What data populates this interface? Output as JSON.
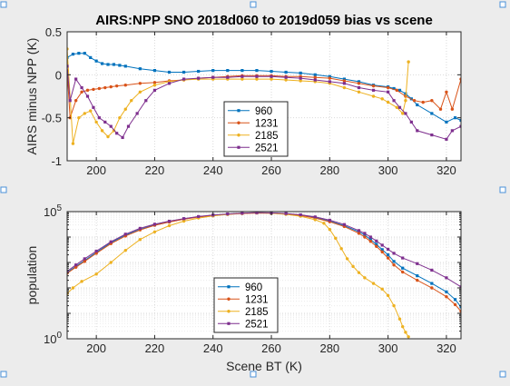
{
  "chart_data": [
    {
      "type": "line",
      "title": "AIRS:NPP SNO 2018d060 to 2019d059 bias vs scene",
      "xlabel": "",
      "ylabel": "AIRS minus NPP (K)",
      "xlim": [
        190,
        325
      ],
      "ylim": [
        -1,
        0.5
      ],
      "xticks": [
        "200",
        "220",
        "240",
        "260",
        "280",
        "300",
        "320"
      ],
      "yticks": [
        "0.5",
        "0",
        "-0.5",
        "-1"
      ],
      "grid": true,
      "legend": "center",
      "series": [
        {
          "name": "960",
          "color": "#0072bd",
          "x": [
            190,
            192,
            194,
            196,
            198,
            200,
            202,
            204,
            206,
            208,
            210,
            215,
            220,
            225,
            230,
            235,
            240,
            245,
            250,
            255,
            260,
            265,
            270,
            275,
            280,
            285,
            290,
            295,
            300,
            302,
            304,
            306,
            308,
            310,
            315,
            320,
            323,
            325
          ],
          "y": [
            0.2,
            0.24,
            0.25,
            0.25,
            0.2,
            0.16,
            0.13,
            0.12,
            0.12,
            0.11,
            0.1,
            0.07,
            0.05,
            0.03,
            0.03,
            0.04,
            0.05,
            0.05,
            0.05,
            0.05,
            0.04,
            0.03,
            0.02,
            0.0,
            -0.02,
            -0.05,
            -0.08,
            -0.12,
            -0.14,
            -0.16,
            -0.18,
            -0.22,
            -0.28,
            -0.35,
            -0.45,
            -0.55,
            -0.5,
            -0.53
          ]
        },
        {
          "name": "1231",
          "color": "#d95319",
          "x": [
            190,
            191,
            193,
            195,
            197,
            199,
            201,
            203,
            205,
            207,
            210,
            215,
            220,
            225,
            230,
            235,
            240,
            245,
            250,
            255,
            260,
            265,
            270,
            275,
            280,
            285,
            290,
            295,
            300,
            303,
            306,
            309,
            312,
            315,
            318,
            320,
            322,
            325
          ],
          "y": [
            0.05,
            -0.5,
            -0.3,
            -0.2,
            -0.18,
            -0.17,
            -0.16,
            -0.15,
            -0.14,
            -0.13,
            -0.12,
            -0.1,
            -0.09,
            -0.07,
            -0.06,
            -0.04,
            -0.03,
            -0.02,
            -0.01,
            -0.01,
            -0.01,
            -0.02,
            -0.02,
            -0.03,
            -0.04,
            -0.07,
            -0.1,
            -0.13,
            -0.15,
            -0.18,
            -0.25,
            -0.3,
            -0.32,
            -0.3,
            -0.4,
            -0.2,
            -0.4,
            -0.05
          ]
        },
        {
          "name": "2185",
          "color": "#edb120",
          "x": [
            190,
            192,
            194,
            196,
            198,
            200,
            202,
            204,
            206,
            208,
            210,
            212,
            215,
            220,
            225,
            230,
            235,
            240,
            245,
            250,
            255,
            260,
            265,
            270,
            275,
            280,
            285,
            290,
            295,
            298,
            300,
            303,
            305,
            306,
            307
          ],
          "y": [
            0.3,
            -0.8,
            -0.5,
            -0.45,
            -0.42,
            -0.55,
            -0.65,
            -0.72,
            -0.65,
            -0.5,
            -0.4,
            -0.3,
            -0.2,
            -0.12,
            -0.08,
            -0.06,
            -0.05,
            -0.05,
            -0.05,
            -0.05,
            -0.05,
            -0.05,
            -0.06,
            -0.07,
            -0.08,
            -0.1,
            -0.15,
            -0.2,
            -0.25,
            -0.28,
            -0.32,
            -0.38,
            -0.45,
            -0.3,
            0.15
          ]
        },
        {
          "name": "2521",
          "color": "#7e2f8e",
          "x": [
            190,
            191,
            193,
            195,
            197,
            199,
            201,
            203,
            205,
            207,
            209,
            211,
            214,
            217,
            220,
            225,
            230,
            235,
            240,
            245,
            250,
            255,
            260,
            265,
            270,
            275,
            280,
            285,
            290,
            295,
            300,
            302,
            304,
            306,
            308,
            310,
            315,
            320,
            322,
            325
          ],
          "y": [
            0.1,
            -0.3,
            -0.05,
            -0.15,
            -0.25,
            -0.38,
            -0.5,
            -0.55,
            -0.6,
            -0.68,
            -0.73,
            -0.6,
            -0.45,
            -0.3,
            -0.18,
            -0.1,
            -0.05,
            -0.04,
            -0.03,
            -0.03,
            -0.02,
            -0.02,
            -0.02,
            -0.03,
            -0.04,
            -0.06,
            -0.08,
            -0.1,
            -0.15,
            -0.18,
            -0.2,
            -0.3,
            -0.38,
            -0.45,
            -0.55,
            -0.65,
            -0.7,
            -0.75,
            -0.65,
            -0.6
          ]
        }
      ]
    },
    {
      "type": "line",
      "title": "",
      "xlabel": "Scene BT (K)",
      "ylabel": "population",
      "yscale": "log",
      "xlim": [
        190,
        325
      ],
      "ylim": [
        1,
        100000
      ],
      "xticks": [
        "200",
        "220",
        "240",
        "260",
        "280",
        "300",
        "320"
      ],
      "grid": true,
      "legend": "center",
      "series": [
        {
          "name": "960",
          "color": "#0072bd",
          "x": [
            190,
            193,
            196,
            200,
            205,
            210,
            215,
            220,
            225,
            230,
            235,
            240,
            245,
            250,
            255,
            260,
            265,
            270,
            275,
            280,
            285,
            290,
            292,
            294,
            296,
            298,
            300,
            302,
            305,
            310,
            315,
            320,
            323,
            325
          ],
          "y": [
            400,
            700,
            1200,
            2500,
            6000,
            12000,
            20000,
            30000,
            40000,
            52000,
            63000,
            72000,
            80000,
            86000,
            90000,
            88000,
            82000,
            72000,
            58000,
            42000,
            28000,
            16000,
            12000,
            8000,
            5200,
            3200,
            2000,
            1100,
            600,
            300,
            150,
            70,
            35,
            18
          ]
        },
        {
          "name": "1231",
          "color": "#d95319",
          "x": [
            190,
            193,
            196,
            200,
            205,
            210,
            215,
            220,
            225,
            230,
            235,
            240,
            245,
            250,
            255,
            260,
            265,
            270,
            275,
            280,
            285,
            290,
            292,
            294,
            296,
            298,
            300,
            302,
            305,
            310,
            315,
            320,
            323,
            325
          ],
          "y": [
            380,
            650,
            1100,
            2300,
            5500,
            11000,
            19000,
            29000,
            39000,
            50000,
            61000,
            70000,
            78000,
            84000,
            88000,
            86000,
            80000,
            70000,
            56000,
            40000,
            26000,
            14000,
            10000,
            6800,
            4300,
            2600,
            1500,
            800,
            420,
            200,
            100,
            45,
            22,
            12
          ]
        },
        {
          "name": "2185",
          "color": "#edb120",
          "x": [
            190,
            192,
            195,
            200,
            205,
            210,
            215,
            220,
            225,
            230,
            235,
            240,
            245,
            250,
            255,
            260,
            265,
            270,
            275,
            278,
            280,
            282,
            284,
            286,
            288,
            290,
            292,
            295,
            298,
            300,
            302,
            304,
            305,
            306,
            307
          ],
          "y": [
            60,
            100,
            180,
            350,
            1000,
            3000,
            8000,
            16000,
            28000,
            42000,
            56000,
            68000,
            78000,
            86000,
            90000,
            86000,
            78000,
            66000,
            48000,
            35000,
            20000,
            9000,
            3500,
            1400,
            700,
            400,
            250,
            150,
            90,
            50,
            20,
            6,
            3,
            1.8,
            1.2
          ]
        },
        {
          "name": "2521",
          "color": "#7e2f8e",
          "x": [
            190,
            193,
            196,
            200,
            205,
            210,
            215,
            220,
            225,
            230,
            235,
            240,
            245,
            250,
            255,
            260,
            265,
            270,
            275,
            280,
            285,
            290,
            292,
            294,
            296,
            298,
            300,
            302,
            305,
            310,
            315,
            320,
            325
          ],
          "y": [
            450,
            800,
            1400,
            2800,
            6500,
            13000,
            22000,
            32000,
            42000,
            53000,
            64000,
            73000,
            81000,
            87000,
            91000,
            89000,
            84000,
            75000,
            62000,
            46000,
            31000,
            18000,
            14000,
            10000,
            7000,
            4800,
            3300,
            2300,
            1500,
            900,
            500,
            250,
            110
          ]
        }
      ]
    }
  ]
}
